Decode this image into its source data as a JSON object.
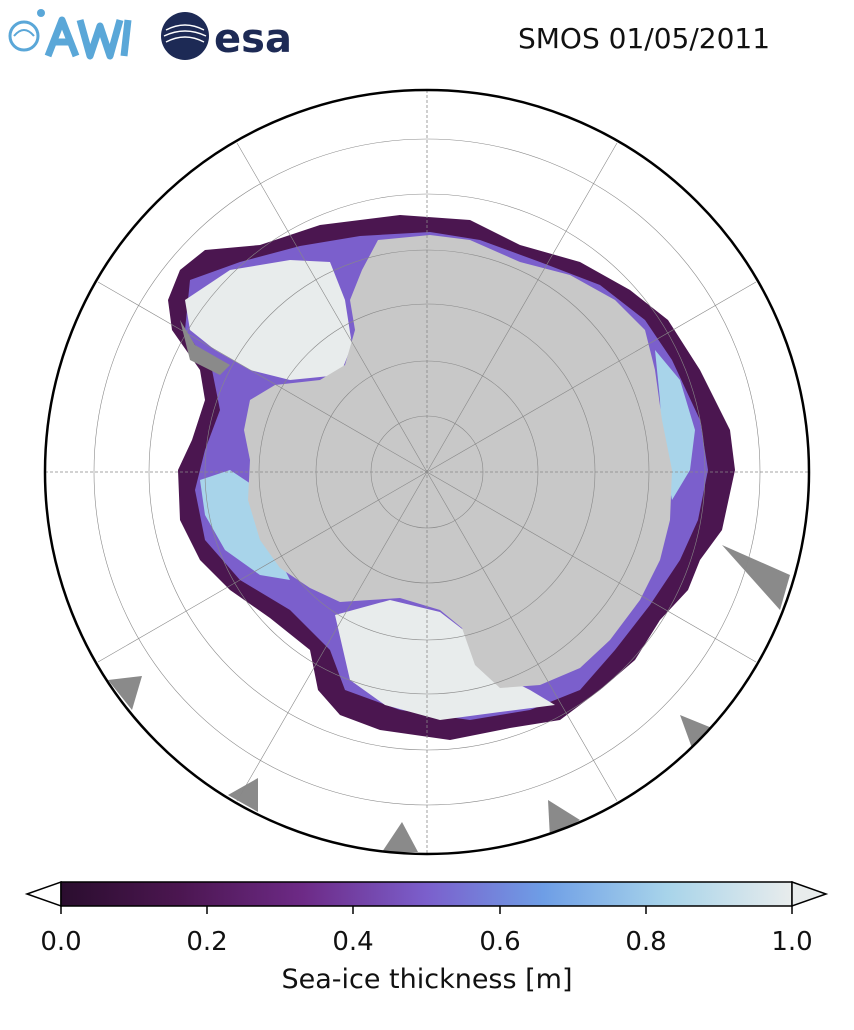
{
  "header": {
    "logo_left": "AWI",
    "logo_right": "esa",
    "title": "SMOS 01/05/2011"
  },
  "map": {
    "projection": "south-polar-stereographic",
    "land_color": "#c8c8c8",
    "ocean_color": "#ffffff",
    "ice_shelf_color": "#8a8a8a",
    "graticule_color": "#888888"
  },
  "colorbar": {
    "label": "Sea-ice thickness [m]",
    "ticks": [
      "0.0",
      "0.2",
      "0.4",
      "0.6",
      "0.8",
      "1.0"
    ],
    "min": 0.0,
    "max": 1.0,
    "extend": "both",
    "colors": [
      "#2a0d2e",
      "#4b1650",
      "#6d2a86",
      "#7b5fcc",
      "#6e9ee6",
      "#a8d4ea",
      "#e8ecec"
    ]
  }
}
